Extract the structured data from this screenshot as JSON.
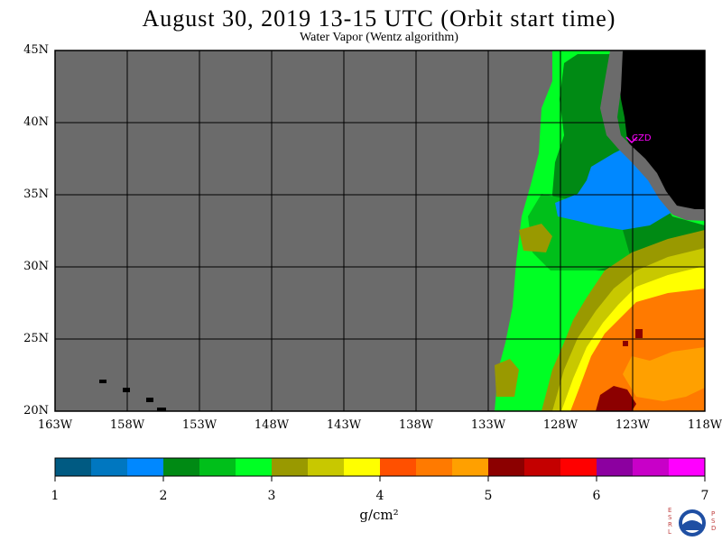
{
  "title": "August 30, 2019  13-15 UTC  (Orbit start time)",
  "subtitle": "Water Vapor (Wentz algorithm)",
  "lat_labels": [
    "45N",
    "40N",
    "35N",
    "30N",
    "25N",
    "20N"
  ],
  "lon_labels": [
    "163W",
    "158W",
    "153W",
    "148W",
    "143W",
    "138W",
    "133W",
    "128W",
    "123W",
    "118W"
  ],
  "station_label": "CZD",
  "colorbar": {
    "ticks": [
      "1",
      "2",
      "3",
      "4",
      "5",
      "6",
      "7"
    ],
    "units": "g/cm²",
    "colors": [
      "#005a82",
      "#0077c0",
      "#0088ff",
      "#008a14",
      "#00bf1a",
      "#00ff24",
      "#999900",
      "#c8c800",
      "#ffff00",
      "#ff5000",
      "#ff7a00",
      "#ffa000",
      "#8c0000",
      "#c40000",
      "#ff0000",
      "#8c00a0",
      "#c800c8",
      "#ff00ff"
    ]
  },
  "colors": {
    "no_data": "#6b6b6b",
    "land": "#000000",
    "station": "#ff00ff"
  },
  "logo_text": {
    "left": [
      "E",
      "S",
      "R",
      "L"
    ],
    "right": [
      "P",
      "S",
      "D"
    ]
  }
}
